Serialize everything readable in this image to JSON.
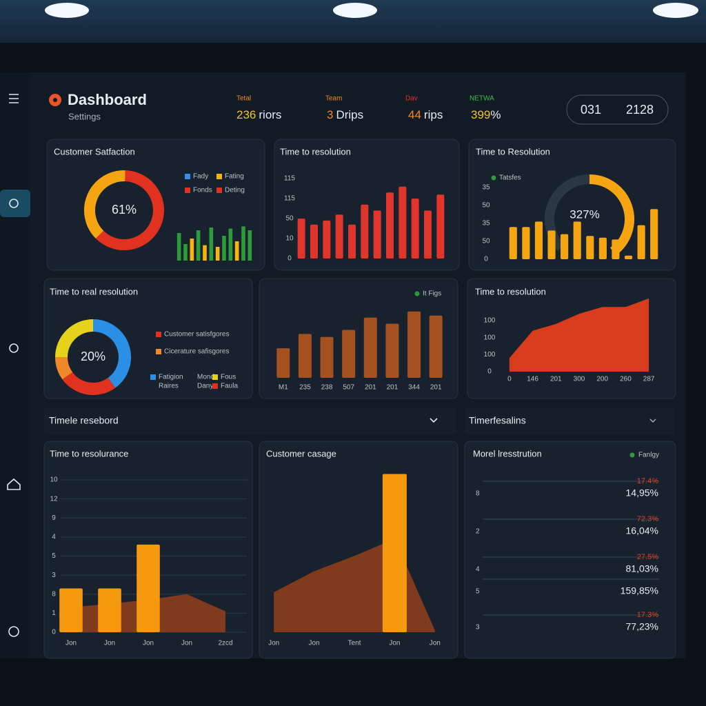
{
  "header": {
    "title": "Dashboard",
    "subtitle": "Settings"
  },
  "kpis": [
    {
      "label": "Tetal",
      "number": "236",
      "unit": "riors"
    },
    {
      "label": "Team",
      "number": "3",
      "unit": "Drips"
    },
    {
      "label": "Dav",
      "number": "44",
      "unit": "rips"
    },
    {
      "label": "NETWA",
      "number": "399",
      "unit": "%"
    }
  ],
  "date_range": [
    "031",
    "2128"
  ],
  "sections": [
    "Timele resebord",
    "Timerfesalins"
  ],
  "chart_data": [
    {
      "type": "donut",
      "title": "Customer Satfaction",
      "center_label": "61%",
      "values": [
        38,
        62
      ],
      "colors": [
        "#f5a511",
        "#e0321e"
      ],
      "legend": [
        {
          "name": "Fady",
          "color": "#2b8fe6"
        },
        {
          "name": "Fating",
          "color": "#f5b511"
        },
        {
          "name": "Fonds",
          "color": "#e0321e"
        },
        {
          "name": "Deting",
          "color": "#e0321e"
        }
      ],
      "bars": {
        "values": [
          50,
          30,
          40,
          55,
          28,
          60,
          25,
          45,
          58,
          35,
          62,
          55
        ],
        "colors": [
          "#2e9b3a",
          "#2e9b3a",
          "#f5b511",
          "#2e9b3a",
          "#f5b511",
          "#2e9b3a",
          "#f5b511",
          "#2e9b3a",
          "#2e9b3a",
          "#f5b511",
          "#2e9b3a",
          "#2e9b3a"
        ],
        "ylim": [
          0,
          100
        ]
      }
    },
    {
      "type": "bar",
      "title": "Time to resolution",
      "values": [
        2.0,
        1.7,
        1.9,
        2.2,
        1.7,
        2.7,
        2.4,
        3.3,
        3.6,
        3.0,
        2.4,
        3.2
      ],
      "color": "#e0352a",
      "ylim": [
        0,
        4
      ],
      "yticks": [
        0,
        {
          "value": 1,
          "label": "10"
        },
        {
          "value": 2,
          "label": "50"
        },
        {
          "value": 3,
          "label": "115"
        },
        {
          "value": 4,
          "label": "115"
        }
      ]
    },
    {
      "type": "bar",
      "title": "Time to Resolution",
      "legend": [
        {
          "name": "Tatsfes",
          "color": "#2e9b3a"
        }
      ],
      "center_label": "327%",
      "values": [
        1.8,
        1.8,
        2.1,
        1.6,
        1.4,
        2.1,
        1.3,
        1.2,
        1.1,
        0.2,
        1.9,
        2.8
      ],
      "color": "#f5a511",
      "ylim": [
        0,
        4
      ],
      "yticks": [
        0,
        {
          "value": 1,
          "label": "50"
        },
        {
          "value": 2,
          "label": "35"
        },
        {
          "value": 3,
          "label": "50"
        },
        {
          "value": 4,
          "label": "35"
        }
      ]
    },
    {
      "type": "donut",
      "title": "Time to real resolution",
      "center_label": "20%",
      "values": [
        40,
        25,
        10,
        25
      ],
      "colors": [
        "#2b8fe6",
        "#e0321e",
        "#f0882a",
        "#e6d21a"
      ],
      "legend": [
        {
          "name": "Customer satisfgores",
          "color": "#e0321e"
        },
        {
          "name": "Cicerature safisgores",
          "color": "#f0882a"
        }
      ],
      "mini_legend": [
        {
          "name": "Fatigion",
          "color": "#2b8fe6"
        },
        {
          "name": "Mond"
        },
        {
          "name": "Fous",
          "color": "#e6d21a"
        },
        {
          "name": "Raires"
        },
        {
          "name": "Dany"
        },
        {
          "name": "Faula",
          "color": "#e0321e"
        }
      ]
    },
    {
      "type": "bar",
      "legend": [
        {
          "name": "It Figs",
          "color": "#2e9b3a"
        }
      ],
      "categories": [
        "M1",
        "235",
        "238",
        "507",
        "201",
        "201",
        "344",
        "201"
      ],
      "values": [
        29,
        43,
        40,
        47,
        59,
        53,
        65,
        61
      ],
      "color": "#a4501f",
      "ylim": [
        0,
        100
      ]
    },
    {
      "type": "area",
      "title": "Time to resolution",
      "categories": [
        "0",
        "146",
        "201",
        "300",
        "200",
        "260",
        "287"
      ],
      "values": [
        0.8,
        2.4,
        2.8,
        3.4,
        3.8,
        3.8,
        4.3
      ],
      "color": "#e8401c",
      "ylim": [
        0,
        4.5
      ],
      "yticks": [
        0,
        {
          "value": 1,
          "label": "100"
        },
        {
          "value": 2,
          "label": "100"
        },
        {
          "value": 3,
          "label": "100"
        }
      ]
    },
    {
      "type": "combo",
      "title": "Time to resolurance",
      "categories": [
        "Jon",
        "Jon",
        "Jon",
        "Jon",
        "2zcd"
      ],
      "series": [
        {
          "type": "area",
          "color": "#8a3d1c",
          "values": [
            1.3,
            1.5,
            1.7,
            2.0,
            1.1
          ]
        },
        {
          "type": "bar",
          "color": "#f59a0f",
          "values": [
            2.3,
            2.3,
            4.6,
            null,
            null
          ]
        }
      ],
      "ylim": [
        0,
        8
      ],
      "yticks": [
        0,
        1,
        {
          "value": 2,
          "label": "8"
        },
        {
          "value": 3,
          "label": "3"
        },
        {
          "value": 4,
          "label": "5"
        },
        {
          "value": 5,
          "label": "4"
        },
        {
          "value": 6,
          "label": "9"
        },
        {
          "value": 7,
          "label": "12"
        },
        {
          "value": 8,
          "label": "10"
        }
      ],
      "grid": true
    },
    {
      "type": "combo",
      "title": "Customer casage",
      "categories": [
        "Jon",
        "Jon",
        "Tent",
        "Jon",
        "Jon"
      ],
      "series": [
        {
          "type": "area",
          "color": "#8a3d1c",
          "values": [
            2.1,
            3.2,
            4.0,
            4.9,
            0.1
          ]
        },
        {
          "type": "bar",
          "color": "#f59a0f",
          "values": [
            null,
            null,
            null,
            8.3,
            null
          ]
        }
      ],
      "ylim": [
        0,
        8.5
      ]
    }
  ],
  "table": {
    "title": "Morel lresstrution",
    "legend": "Fanlgy",
    "rows": [
      {
        "label": "8",
        "change": "17.4%",
        "value": "14,95%"
      },
      {
        "label": "2",
        "change": "72.3%",
        "value": "16,04%"
      },
      {
        "label": "4",
        "change": "27.5%",
        "value": "81,03%"
      },
      {
        "label": "5",
        "value": "159,85%"
      },
      {
        "label": "3",
        "change": "17.3%",
        "value": "77,23%"
      }
    ]
  }
}
